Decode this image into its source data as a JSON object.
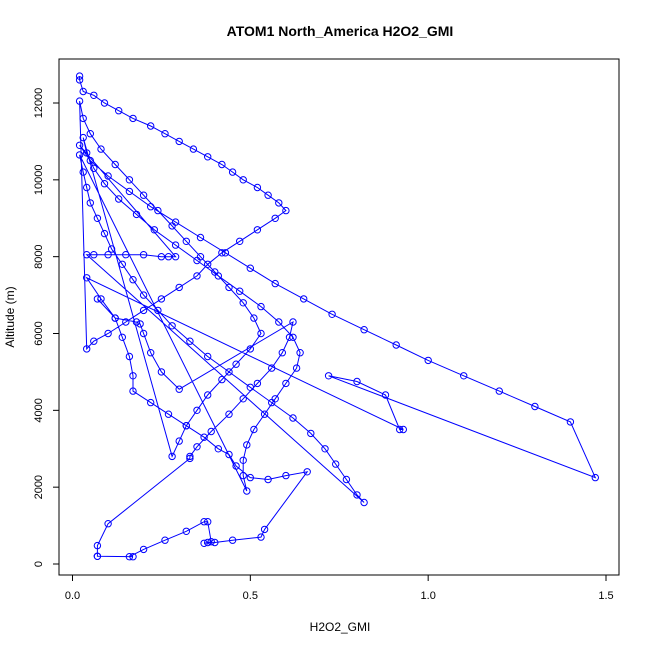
{
  "chart_data": {
    "type": "line",
    "title": "ATOM1 North_America H2O2_GMI",
    "xlabel": "H2O2_GMI",
    "ylabel": "Altitude (m)",
    "xlim": [
      0,
      1.5
    ],
    "ylim": [
      0,
      12000
    ],
    "x_ticks": [
      "0.0",
      "0.5",
      "1.0",
      "1.5"
    ],
    "y_ticks": [
      "0",
      "2000",
      "4000",
      "6000",
      "8000",
      "10000",
      "12000"
    ],
    "grid": false,
    "series": [
      {
        "color": "#0000ff",
        "marker": "open-circle",
        "points": [
          [
            0.02,
            12700
          ],
          [
            0.02,
            12600
          ],
          [
            0.03,
            12300
          ],
          [
            0.06,
            12200
          ],
          [
            0.09,
            12000
          ],
          [
            0.13,
            11800
          ],
          [
            0.17,
            11600
          ],
          [
            0.22,
            11400
          ],
          [
            0.26,
            11200
          ],
          [
            0.3,
            11000
          ],
          [
            0.34,
            10800
          ],
          [
            0.38,
            10600
          ],
          [
            0.42,
            10400
          ],
          [
            0.45,
            10200
          ],
          [
            0.48,
            10000
          ],
          [
            0.52,
            9800
          ],
          [
            0.55,
            9600
          ],
          [
            0.58,
            9400
          ],
          [
            0.6,
            9200
          ],
          [
            0.57,
            9000
          ],
          [
            0.52,
            8700
          ],
          [
            0.47,
            8400
          ],
          [
            0.42,
            8100
          ],
          [
            0.38,
            7800
          ],
          [
            0.35,
            7500
          ],
          [
            0.3,
            7200
          ],
          [
            0.25,
            6900
          ],
          [
            0.2,
            6600
          ],
          [
            0.15,
            6300
          ],
          [
            0.1,
            6000
          ],
          [
            0.06,
            5800
          ],
          [
            0.04,
            5600
          ],
          [
            0.02,
            12050
          ],
          [
            0.03,
            11600
          ],
          [
            0.05,
            11200
          ],
          [
            0.08,
            10800
          ],
          [
            0.12,
            10400
          ],
          [
            0.16,
            10000
          ],
          [
            0.2,
            9600
          ],
          [
            0.24,
            9200
          ],
          [
            0.28,
            8800
          ],
          [
            0.32,
            8400
          ],
          [
            0.36,
            8000
          ],
          [
            0.4,
            7600
          ],
          [
            0.44,
            7200
          ],
          [
            0.48,
            6800
          ],
          [
            0.51,
            6400
          ],
          [
            0.53,
            6000
          ],
          [
            0.5,
            5600
          ],
          [
            0.46,
            5200
          ],
          [
            0.42,
            4800
          ],
          [
            0.38,
            4400
          ],
          [
            0.35,
            4000
          ],
          [
            0.32,
            3600
          ],
          [
            0.3,
            3200
          ],
          [
            0.28,
            2800
          ],
          [
            0.03,
            11100
          ],
          [
            0.04,
            10700
          ],
          [
            0.06,
            10300
          ],
          [
            0.09,
            9900
          ],
          [
            0.13,
            9500
          ],
          [
            0.18,
            9100
          ],
          [
            0.23,
            8700
          ],
          [
            0.29,
            8300
          ],
          [
            0.35,
            7900
          ],
          [
            0.41,
            7500
          ],
          [
            0.47,
            7100
          ],
          [
            0.53,
            6700
          ],
          [
            0.58,
            6300
          ],
          [
            0.62,
            5900
          ],
          [
            0.64,
            5500
          ],
          [
            0.63,
            5100
          ],
          [
            0.6,
            4700
          ],
          [
            0.57,
            4300
          ],
          [
            0.54,
            3900
          ],
          [
            0.51,
            3500
          ],
          [
            0.49,
            3100
          ],
          [
            0.48,
            2700
          ],
          [
            0.48,
            2300
          ],
          [
            0.49,
            1900
          ],
          [
            0.02,
            10650
          ],
          [
            0.03,
            10200
          ],
          [
            0.04,
            9800
          ],
          [
            0.05,
            9400
          ],
          [
            0.07,
            9000
          ],
          [
            0.09,
            8600
          ],
          [
            0.11,
            8200
          ],
          [
            0.14,
            7800
          ],
          [
            0.17,
            7400
          ],
          [
            0.2,
            7000
          ],
          [
            0.24,
            6600
          ],
          [
            0.28,
            6200
          ],
          [
            0.33,
            5800
          ],
          [
            0.38,
            5400
          ],
          [
            0.44,
            5000
          ],
          [
            0.5,
            4600
          ],
          [
            0.56,
            4200
          ],
          [
            0.62,
            3800
          ],
          [
            0.67,
            3400
          ],
          [
            0.71,
            3000
          ],
          [
            0.74,
            2600
          ],
          [
            0.77,
            2200
          ],
          [
            0.8,
            1800
          ],
          [
            0.82,
            1600
          ],
          [
            0.04,
            8050
          ],
          [
            0.06,
            8050
          ],
          [
            0.1,
            8050
          ],
          [
            0.15,
            8050
          ],
          [
            0.2,
            8050
          ],
          [
            0.25,
            8000
          ],
          [
            0.27,
            8000
          ],
          [
            0.29,
            8000
          ],
          [
            0.02,
            10900
          ],
          [
            0.05,
            10500
          ],
          [
            0.1,
            10100
          ],
          [
            0.16,
            9700
          ],
          [
            0.22,
            9300
          ],
          [
            0.29,
            8900
          ],
          [
            0.36,
            8500
          ],
          [
            0.43,
            8100
          ],
          [
            0.5,
            7700
          ],
          [
            0.57,
            7300
          ],
          [
            0.65,
            6900
          ],
          [
            0.73,
            6500
          ],
          [
            0.82,
            6100
          ],
          [
            0.91,
            5700
          ],
          [
            1.0,
            5300
          ],
          [
            1.1,
            4900
          ],
          [
            1.2,
            4500
          ],
          [
            1.3,
            4100
          ],
          [
            1.4,
            3700
          ],
          [
            1.47,
            2250
          ],
          [
            0.72,
            4900
          ],
          [
            0.8,
            4750
          ],
          [
            0.88,
            4400
          ],
          [
            0.92,
            3500
          ],
          [
            0.93,
            3500
          ],
          [
            0.04,
            7450
          ],
          [
            0.08,
            6900
          ],
          [
            0.12,
            6400
          ],
          [
            0.14,
            5900
          ],
          [
            0.16,
            5400
          ],
          [
            0.17,
            4900
          ],
          [
            0.17,
            4500
          ],
          [
            0.22,
            4200
          ],
          [
            0.27,
            3900
          ],
          [
            0.32,
            3600
          ],
          [
            0.37,
            3300
          ],
          [
            0.41,
            3000
          ],
          [
            0.44,
            2850
          ],
          [
            0.46,
            2550
          ],
          [
            0.5,
            2250
          ],
          [
            0.55,
            2200
          ],
          [
            0.6,
            2300
          ],
          [
            0.66,
            2400
          ],
          [
            0.54,
            900
          ],
          [
            0.53,
            700
          ],
          [
            0.45,
            620
          ],
          [
            0.4,
            560
          ],
          [
            0.37,
            540
          ],
          [
            0.38,
            560
          ],
          [
            0.39,
            580
          ],
          [
            0.38,
            1100
          ],
          [
            0.37,
            1100
          ],
          [
            0.32,
            850
          ],
          [
            0.26,
            620
          ],
          [
            0.2,
            380
          ],
          [
            0.16,
            190
          ],
          [
            0.17,
            190
          ],
          [
            0.07,
            200
          ],
          [
            0.07,
            200
          ],
          [
            0.07,
            480
          ],
          [
            0.1,
            1050
          ],
          [
            0.33,
            2750
          ],
          [
            0.33,
            2800
          ],
          [
            0.35,
            3050
          ],
          [
            0.39,
            3450
          ],
          [
            0.44,
            3900
          ],
          [
            0.48,
            4300
          ],
          [
            0.52,
            4700
          ],
          [
            0.56,
            5100
          ],
          [
            0.59,
            5500
          ],
          [
            0.61,
            5900
          ],
          [
            0.62,
            6300
          ],
          [
            0.3,
            4550
          ],
          [
            0.25,
            5000
          ],
          [
            0.22,
            5500
          ],
          [
            0.2,
            6000
          ],
          [
            0.19,
            6250
          ],
          [
            0.18,
            6300
          ],
          [
            0.12,
            6400
          ],
          [
            0.07,
            6900
          ]
        ]
      }
    ]
  }
}
